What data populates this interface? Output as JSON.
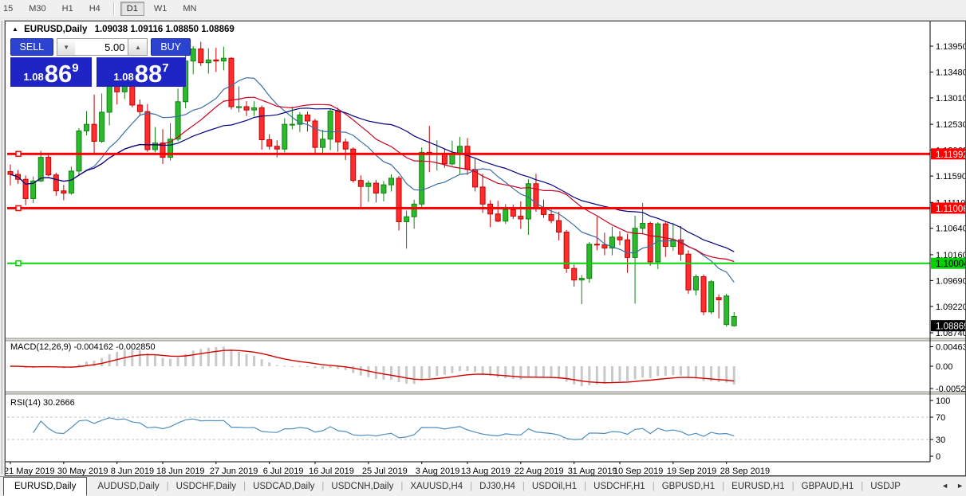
{
  "toolbar": {
    "groups": [
      [
        "15",
        "M30",
        "H1",
        "H4"
      ],
      [
        "D1",
        "W1",
        "MN"
      ]
    ],
    "active": "D1"
  },
  "chart_header": {
    "symbol": "EURUSD,Daily",
    "ohlc": "1.09038 1.09116 1.08850 1.08869"
  },
  "trade_panel": {
    "sell_label": "SELL",
    "buy_label": "BUY",
    "volume": "5.00",
    "bid": {
      "prefix": "1.08",
      "big": "86",
      "sup": "9"
    },
    "ask": {
      "prefix": "1.08",
      "big": "88",
      "sup": "7"
    }
  },
  "indicators": {
    "macd_label": "MACD(12,26,9) -0.004162 -0.002850",
    "rsi_label": "RSI(14) 30.2666"
  },
  "tabs": {
    "items": [
      "EURUSD,Daily",
      "AUDUSD,Daily",
      "USDCHF,Daily",
      "USDCAD,Daily",
      "USDCNH,Daily",
      "XAUUSD,H4",
      "DJ30,H4",
      "USDOil,H1",
      "USDCHF,H1",
      "GBPUSD,H1",
      "EURUSD,H1",
      "GBPAUD,H1",
      "USDJP"
    ],
    "active": "EURUSD,Daily",
    "scroll_left": "◄",
    "scroll_right": "►"
  },
  "chart_data": {
    "type": "candlestick",
    "symbol": "EURUSD",
    "timeframe": "Daily",
    "grid": false,
    "price_range": [
      1.08625,
      1.14355
    ],
    "y_ticks": [
      "1.13950",
      "1.13480",
      "1.13010",
      "1.12530",
      "1.12060",
      "1.11590",
      "1.11110",
      "1.10640",
      "1.10160",
      "1.09690",
      "1.09220",
      "1.08740"
    ],
    "hlines": [
      {
        "price": 1.11992,
        "label": "1.11992",
        "color": "#ff0000",
        "width": 3
      },
      {
        "price": 1.11006,
        "label": "1.11006",
        "color": "#ff0000",
        "width": 3
      },
      {
        "price": 1.10004,
        "label": "1.10004",
        "color": "#00d400",
        "width": 2
      }
    ],
    "current_price": {
      "value": 1.08869,
      "label": "1.08869",
      "bg": "#000000",
      "fg": "#ffffff"
    },
    "candle_colors": {
      "up": "#2db92d",
      "up_edge": "#128312",
      "down": "#ff2d2d",
      "down_edge": "#c40000"
    },
    "color_overrides": {
      "95": "up"
    },
    "moving_averages": [
      {
        "period": 10,
        "color": "#3a6ea5"
      },
      {
        "period": 20,
        "color": "#cc0022"
      },
      {
        "period": 30,
        "color": "#000080"
      }
    ],
    "x_tick_indices": [
      0,
      7,
      14,
      20,
      27,
      34,
      40,
      47,
      54,
      60,
      67,
      74,
      80,
      87,
      94
    ],
    "x_tick_labels": [
      "21 May 2019",
      "30 May 2019",
      "8 Jun 2019",
      "18 Jun 2019",
      "27 Jun 2019",
      "6 Jul 2019",
      "16 Jul 2019",
      "25 Jul 2019",
      "3 Aug 2019",
      "13 Aug 2019",
      "22 Aug 2019",
      "31 Aug 2019",
      "10 Sep 2019",
      "19 Sep 2019",
      "28 Sep 2019"
    ],
    "ohlc": [
      [
        1.1167,
        1.118,
        1.1142,
        1.1162
      ],
      [
        1.1162,
        1.117,
        1.1145,
        1.1153
      ],
      [
        1.1153,
        1.116,
        1.1106,
        1.1118
      ],
      [
        1.1118,
        1.1158,
        1.111,
        1.115
      ],
      [
        1.115,
        1.1205,
        1.1148,
        1.1193
      ],
      [
        1.1193,
        1.1197,
        1.1159,
        1.1161
      ],
      [
        1.1161,
        1.1165,
        1.1123,
        1.1132
      ],
      [
        1.1132,
        1.1143,
        1.1115,
        1.1128
      ],
      [
        1.1128,
        1.1176,
        1.1125,
        1.1168
      ],
      [
        1.1168,
        1.1246,
        1.116,
        1.1241
      ],
      [
        1.1241,
        1.1277,
        1.1233,
        1.1253
      ],
      [
        1.1253,
        1.1307,
        1.1201,
        1.1222
      ],
      [
        1.1222,
        1.1309,
        1.1219,
        1.1275
      ],
      [
        1.1275,
        1.1348,
        1.1251,
        1.1334
      ],
      [
        1.1334,
        1.1338,
        1.1289,
        1.1312
      ],
      [
        1.1312,
        1.1337,
        1.1299,
        1.1326
      ],
      [
        1.1326,
        1.1344,
        1.1284,
        1.1288
      ],
      [
        1.1288,
        1.1298,
        1.1268,
        1.1276
      ],
      [
        1.1276,
        1.129,
        1.1203,
        1.1207
      ],
      [
        1.1207,
        1.1248,
        1.1202,
        1.1219
      ],
      [
        1.1219,
        1.1244,
        1.1181,
        1.1193
      ],
      [
        1.1193,
        1.1255,
        1.1187,
        1.1226
      ],
      [
        1.1226,
        1.1318,
        1.1222,
        1.1294
      ],
      [
        1.1294,
        1.1378,
        1.1282,
        1.1368
      ],
      [
        1.1368,
        1.1395,
        1.1344,
        1.139
      ],
      [
        1.139,
        1.1403,
        1.1359,
        1.1365
      ],
      [
        1.1365,
        1.1391,
        1.1345,
        1.137
      ],
      [
        1.137,
        1.1392,
        1.1348,
        1.1368
      ],
      [
        1.1368,
        1.1394,
        1.1351,
        1.1373
      ],
      [
        1.1373,
        1.1375,
        1.128,
        1.1285
      ],
      [
        1.1285,
        1.1322,
        1.1275,
        1.1285
      ],
      [
        1.1285,
        1.1295,
        1.1268,
        1.1279
      ],
      [
        1.1279,
        1.1295,
        1.1268,
        1.1283
      ],
      [
        1.1283,
        1.1287,
        1.1207,
        1.1225
      ],
      [
        1.1225,
        1.1235,
        1.1207,
        1.1213
      ],
      [
        1.1213,
        1.1224,
        1.1193,
        1.1208
      ],
      [
        1.1208,
        1.1264,
        1.1202,
        1.1253
      ],
      [
        1.1253,
        1.1285,
        1.1244,
        1.1253
      ],
      [
        1.1253,
        1.1275,
        1.1239,
        1.127
      ],
      [
        1.127,
        1.1276,
        1.124,
        1.1259
      ],
      [
        1.1259,
        1.1263,
        1.1201,
        1.1211
      ],
      [
        1.1211,
        1.1243,
        1.1201,
        1.1226
      ],
      [
        1.1226,
        1.1282,
        1.1206,
        1.1277
      ],
      [
        1.1277,
        1.1283,
        1.1203,
        1.1221
      ],
      [
        1.1221,
        1.1227,
        1.1188,
        1.1208
      ],
      [
        1.1208,
        1.1211,
        1.1147,
        1.1151
      ],
      [
        1.1151,
        1.116,
        1.1101,
        1.114
      ],
      [
        1.114,
        1.1151,
        1.1112,
        1.1146
      ],
      [
        1.1146,
        1.1152,
        1.1111,
        1.1128
      ],
      [
        1.1128,
        1.115,
        1.1113,
        1.1143
      ],
      [
        1.1143,
        1.1162,
        1.1131,
        1.1155
      ],
      [
        1.1155,
        1.1159,
        1.106,
        1.1076
      ],
      [
        1.1076,
        1.1096,
        1.1027,
        1.1085
      ],
      [
        1.1085,
        1.1116,
        1.1063,
        1.1108
      ],
      [
        1.1108,
        1.1211,
        1.1101,
        1.1202
      ],
      [
        1.1202,
        1.125,
        1.1166,
        1.12
      ],
      [
        1.12,
        1.1224,
        1.1169,
        1.12
      ],
      [
        1.12,
        1.1209,
        1.1174,
        1.1181
      ],
      [
        1.1181,
        1.1223,
        1.1178,
        1.1199
      ],
      [
        1.1199,
        1.123,
        1.1162,
        1.1213
      ],
      [
        1.1213,
        1.1228,
        1.1161,
        1.1171
      ],
      [
        1.1171,
        1.119,
        1.1131,
        1.1139
      ],
      [
        1.1139,
        1.1163,
        1.1092,
        1.1108
      ],
      [
        1.1108,
        1.1115,
        1.1066,
        1.109
      ],
      [
        1.109,
        1.1114,
        1.1075,
        1.1077
      ],
      [
        1.1077,
        1.1108,
        1.1072,
        1.1098
      ],
      [
        1.1098,
        1.1107,
        1.1081,
        1.1086
      ],
      [
        1.1086,
        1.1113,
        1.1063,
        1.1081
      ],
      [
        1.1081,
        1.1153,
        1.1052,
        1.1145
      ],
      [
        1.1145,
        1.1163,
        1.1094,
        1.1101
      ],
      [
        1.1101,
        1.1116,
        1.1083,
        1.1089
      ],
      [
        1.1089,
        1.1098,
        1.1073,
        1.1078
      ],
      [
        1.1078,
        1.1094,
        1.1042,
        1.1057
      ],
      [
        1.1057,
        1.1061,
        1.0983,
        1.0991
      ],
      [
        1.0991,
        1.0998,
        1.0958,
        1.097
      ],
      [
        1.097,
        1.0979,
        1.0926,
        1.0973
      ],
      [
        1.0973,
        1.1039,
        1.0965,
        1.1035
      ],
      [
        1.1035,
        1.1085,
        1.1024,
        1.1034
      ],
      [
        1.1034,
        1.1056,
        1.1015,
        1.1028
      ],
      [
        1.1028,
        1.1067,
        1.1015,
        1.1048
      ],
      [
        1.1048,
        1.1059,
        1.1033,
        1.1043
      ],
      [
        1.1043,
        1.1054,
        1.0983,
        1.1011
      ],
      [
        1.1011,
        1.1087,
        1.0927,
        1.1064
      ],
      [
        1.1064,
        1.111,
        1.1053,
        1.1073
      ],
      [
        1.1073,
        1.1076,
        1.0996,
        1.1003
      ],
      [
        1.1003,
        1.1075,
        1.099,
        1.1072
      ],
      [
        1.1072,
        1.1076,
        1.1012,
        1.1031
      ],
      [
        1.1031,
        1.1074,
        1.1023,
        1.1043
      ],
      [
        1.1043,
        1.1068,
        1.1005,
        1.1017
      ],
      [
        1.1017,
        1.1024,
        1.0945,
        1.0952
      ],
      [
        1.0952,
        1.098,
        1.0942,
        1.0976
      ],
      [
        1.0976,
        1.098,
        1.0906,
        1.0912
      ],
      [
        1.0912,
        1.097,
        1.0908,
        1.0967
      ],
      [
        1.0938,
        1.0944,
        1.09,
        1.0934
      ],
      [
        1.0889,
        1.0945,
        1.0885,
        1.0941
      ],
      [
        1.09038,
        1.09116,
        1.0885,
        1.08869
      ]
    ],
    "macd": {
      "params": "12,26,9",
      "current_macd": -0.004162,
      "current_signal": -0.00285,
      "axis_labels": [
        "0.00463",
        "0.00",
        "-0.005299"
      ],
      "hist_color": "#c9c9c9",
      "signal_color": "#d40000"
    },
    "rsi": {
      "period": 14,
      "current": 30.2666,
      "axis_labels": [
        "100",
        "70",
        "30",
        "0"
      ],
      "levels": [
        70,
        30
      ],
      "line_color": "#4f8fbf"
    }
  }
}
